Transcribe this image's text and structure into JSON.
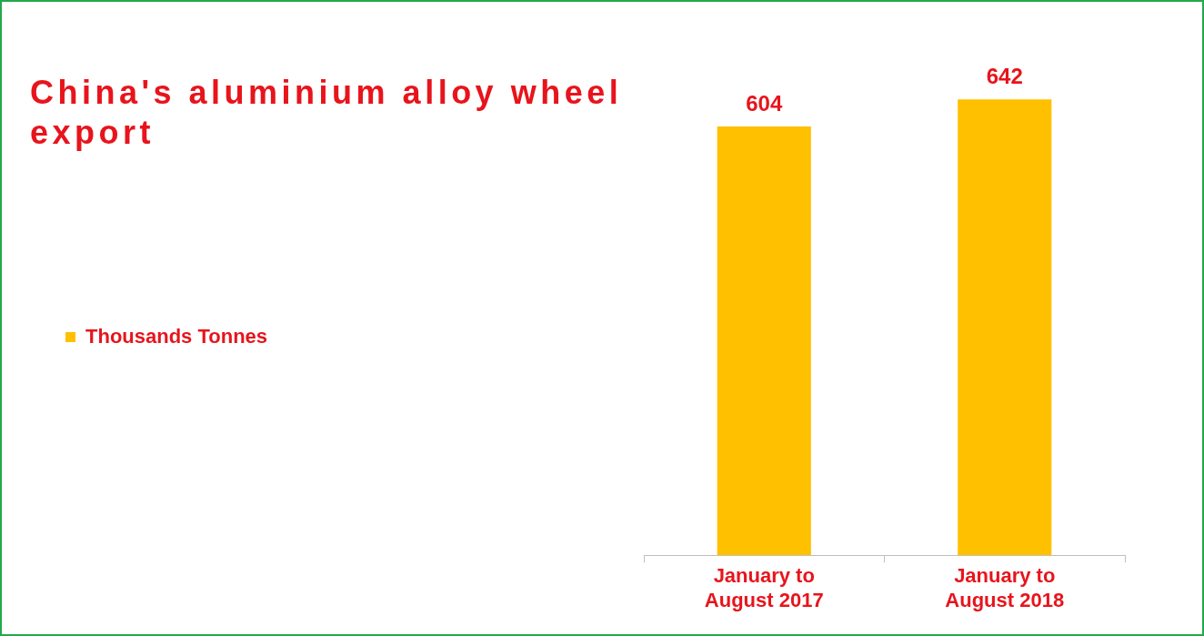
{
  "chart_data": {
    "type": "bar",
    "title": "China's aluminium alloy wheel export",
    "categories": [
      "January to August 2017",
      "January to August 2018"
    ],
    "series": [
      {
        "name": "Thousands Tonnes",
        "color": "#ffc000",
        "values": [
          604,
          642
        ]
      }
    ],
    "data_labels": true,
    "legend": "left",
    "grid": false,
    "tick_labels": "x"
  }
}
